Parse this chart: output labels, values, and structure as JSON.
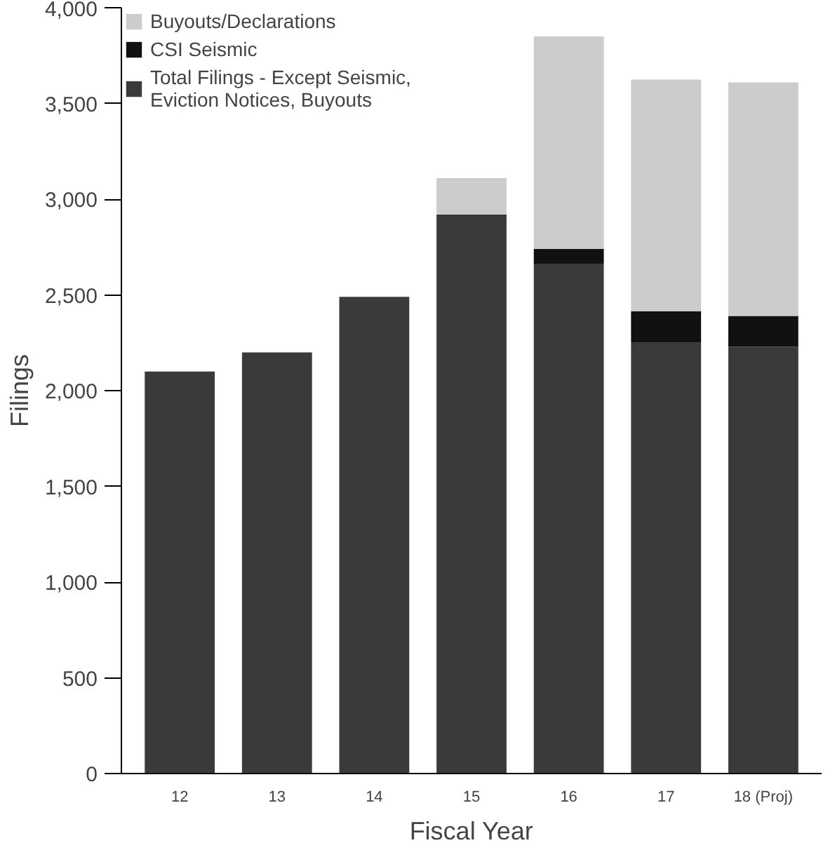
{
  "chart_data": {
    "type": "bar",
    "stacked": true,
    "xlabel": "Fiscal Year",
    "ylabel": "Filings",
    "categories": [
      "12",
      "13",
      "14",
      "15",
      "16",
      "17",
      "18 (Proj)"
    ],
    "series": [
      {
        "name": "Total Filings - Except Seismic,\nEviction Notices, Buyouts",
        "color": "#3a3a3a",
        "values": [
          2100,
          2200,
          2490,
          2920,
          2660,
          2250,
          2230
        ]
      },
      {
        "name": "CSI Seismic",
        "color": "#111111",
        "values": [
          0,
          0,
          0,
          0,
          80,
          165,
          160
        ]
      },
      {
        "name": "Buyouts/Declarations",
        "color": "#cccccc",
        "values": [
          0,
          0,
          0,
          190,
          1110,
          1210,
          1220
        ]
      }
    ],
    "ylim": [
      0,
      4000
    ],
    "yticks": [
      {
        "value": 0,
        "label": "0"
      },
      {
        "value": 500,
        "label": "500"
      },
      {
        "value": 1000,
        "label": "1,000"
      },
      {
        "value": 1500,
        "label": "1,500"
      },
      {
        "value": 2000,
        "label": "2,000"
      },
      {
        "value": 2500,
        "label": "2,500"
      },
      {
        "value": 3000,
        "label": "3,000"
      },
      {
        "value": 3500,
        "label": "3,500"
      },
      {
        "value": 4000,
        "label": "4,000"
      }
    ],
    "grid": false,
    "legend": "top left"
  }
}
